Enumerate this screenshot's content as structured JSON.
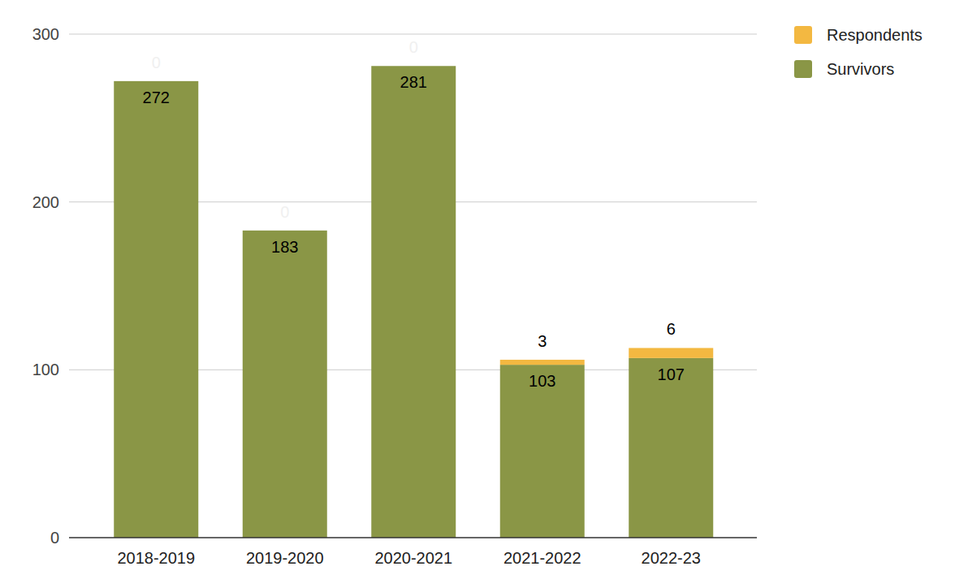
{
  "chart_data": {
    "type": "bar",
    "stacked": true,
    "categories": [
      "2018-2019",
      "2019-2020",
      "2020-2021",
      "2021-2022",
      "2022-23"
    ],
    "series": [
      {
        "name": "Survivors",
        "color": "#8a9646",
        "values": [
          272,
          183,
          281,
          103,
          107
        ]
      },
      {
        "name": "Respondents",
        "color": "#f3b841",
        "values": [
          0,
          0,
          0,
          3,
          6
        ]
      }
    ],
    "ylim": [
      0,
      300
    ],
    "yticks": [
      0,
      100,
      200,
      300
    ],
    "grid": true,
    "legend": "right",
    "data_labels": true
  }
}
